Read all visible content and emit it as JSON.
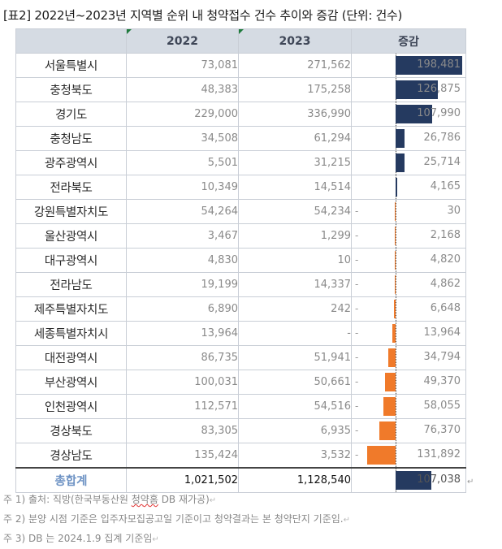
{
  "title": "[표2] 2022년~2023년 지역별 순위 내 청약접수 건수 추이와 증감 (단위: 건수)",
  "table": {
    "headers": [
      "",
      "2022",
      "2023",
      "증감"
    ],
    "rows": [
      {
        "region": "서울특별시",
        "y2022": "73,081",
        "y2023": "271,562",
        "delta": 198481,
        "delta_text": "198,481",
        "sign": ""
      },
      {
        "region": "충청북도",
        "y2022": "48,383",
        "y2023": "175,258",
        "delta": 126875,
        "delta_text": "126,875",
        "sign": ""
      },
      {
        "region": "경기도",
        "y2022": "229,000",
        "y2023": "336,990",
        "delta": 107990,
        "delta_text": "107,990",
        "sign": ""
      },
      {
        "region": "충청남도",
        "y2022": "34,508",
        "y2023": "61,294",
        "delta": 26786,
        "delta_text": "26,786",
        "sign": ""
      },
      {
        "region": "광주광역시",
        "y2022": "5,501",
        "y2023": "31,215",
        "delta": 25714,
        "delta_text": "25,714",
        "sign": ""
      },
      {
        "region": "전라북도",
        "y2022": "10,349",
        "y2023": "14,514",
        "delta": 4165,
        "delta_text": "4,165",
        "sign": ""
      },
      {
        "region": "강원특별자치도",
        "y2022": "54,264",
        "y2023": "54,234",
        "delta": -30,
        "delta_text": "30",
        "sign": "-"
      },
      {
        "region": "울산광역시",
        "y2022": "3,467",
        "y2023": "1,299",
        "delta": -2168,
        "delta_text": "2,168",
        "sign": "-"
      },
      {
        "region": "대구광역시",
        "y2022": "4,830",
        "y2023": "10",
        "delta": -4820,
        "delta_text": "4,820",
        "sign": "-"
      },
      {
        "region": "전라남도",
        "y2022": "19,199",
        "y2023": "14,337",
        "delta": -4862,
        "delta_text": "4,862",
        "sign": "-"
      },
      {
        "region": "제주특별자치도",
        "y2022": "6,890",
        "y2023": "242",
        "delta": -6648,
        "delta_text": "6,648",
        "sign": "-"
      },
      {
        "region": "세종특별자치시",
        "y2022": "13,964",
        "y2023": "-",
        "delta": -13964,
        "delta_text": "13,964",
        "sign": "-"
      },
      {
        "region": "대전광역시",
        "y2022": "86,735",
        "y2023": "51,941",
        "delta": -34794,
        "delta_text": "34,794",
        "sign": "-"
      },
      {
        "region": "부산광역시",
        "y2022": "100,031",
        "y2023": "50,661",
        "delta": -49370,
        "delta_text": "49,370",
        "sign": "-"
      },
      {
        "region": "인천광역시",
        "y2022": "112,571",
        "y2023": "54,516",
        "delta": -58055,
        "delta_text": "58,055",
        "sign": "-"
      },
      {
        "region": "경상북도",
        "y2022": "83,305",
        "y2023": "6,935",
        "delta": -76370,
        "delta_text": "76,370",
        "sign": "-"
      },
      {
        "region": "경상남도",
        "y2022": "135,424",
        "y2023": "3,532",
        "delta": -131892,
        "delta_text": "131,892",
        "sign": "-"
      }
    ],
    "total": {
      "region": "총합계",
      "y2022": "1,021,502",
      "y2023": "1,128,540",
      "delta": 107038,
      "delta_text": "107,038"
    }
  },
  "notes": {
    "n1_a": "주 1) 출처: 직방(한국부동산원 ",
    "n1_b": "청약홈",
    "n1_c": " DB 재가공)",
    "n2": "주 2) 분양 시점 기준은 입주자모집공고일 기준이고 청약결과는 본 청약단지 기준임.",
    "n3": "주 3) DB 는 2024.1.9 집계 기준임"
  },
  "symbols": {
    "paragraph": "↵"
  },
  "colors": {
    "positive_bar": "#253a60",
    "negative_bar": "#f07a2a",
    "header_bg": "#d5dbe3",
    "total_label": "#6e93c4"
  }
}
